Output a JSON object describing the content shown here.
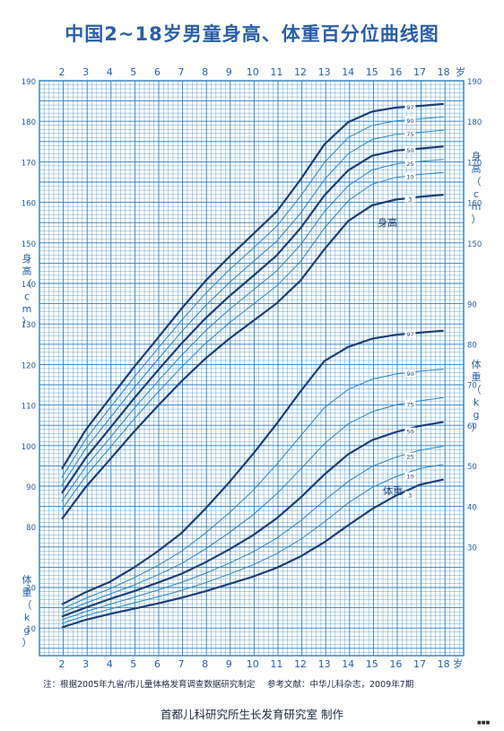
{
  "title": "中国2~18岁男童身高、体重百分位曲线图",
  "footer": {
    "note": "注：根据2005年九省/市儿童体格发育调查数据研究制定",
    "reference": "参考文献：中华儿科杂志，2009年7期",
    "maker": "首都儿科研究所生长发育研究室  制作",
    "corner_mark": "■■■"
  },
  "colors": {
    "grid": "#2b7fc4",
    "curve_major": "#1b3f7a",
    "curve_minor": "#2a86c6",
    "text": "#2a5fa8"
  },
  "chart_data": {
    "type": "line",
    "x_axis": {
      "ticks": [
        "2",
        "3",
        "4",
        "5",
        "6",
        "7",
        "8",
        "9",
        "10",
        "11",
        "12",
        "13",
        "14",
        "15",
        "16",
        "17",
        "18"
      ],
      "unit": "岁",
      "range": [
        2,
        18
      ]
    },
    "height": {
      "label": "身高",
      "axis_label": "身高（cm）",
      "unit": "cm",
      "ticks_left": [
        "80",
        "90",
        "100",
        "110",
        "120",
        "130",
        "140",
        "150",
        "160",
        "170",
        "180",
        "190"
      ],
      "ticks_right": [
        "150",
        "160",
        "170",
        "180",
        "190"
      ],
      "ylim": [
        77,
        190
      ],
      "series": [
        {
          "name": "97",
          "major": true,
          "x": [
            2,
            3,
            4,
            5,
            6,
            7,
            8,
            9,
            10,
            11,
            12,
            13,
            14,
            15,
            16,
            17,
            18
          ],
          "y": [
            94.5,
            104.1,
            111.8,
            119.4,
            126.6,
            133.9,
            140.7,
            146.7,
            152.3,
            157.9,
            165.8,
            174.5,
            180.0,
            182.6,
            183.6,
            184.0,
            184.5
          ]
        },
        {
          "name": "90",
          "major": false,
          "x": [
            2,
            3,
            4,
            5,
            6,
            7,
            8,
            9,
            10,
            11,
            12,
            13,
            14,
            15,
            16,
            17,
            18
          ],
          "y": [
            92.4,
            101.8,
            109.4,
            116.9,
            124.0,
            131.0,
            137.6,
            143.5,
            148.8,
            154.3,
            161.7,
            170.0,
            176.2,
            179.2,
            180.3,
            180.8,
            181.3
          ]
        },
        {
          "name": "75",
          "major": false,
          "x": [
            2,
            3,
            4,
            5,
            6,
            7,
            8,
            9,
            10,
            11,
            12,
            13,
            14,
            15,
            16,
            17,
            18
          ],
          "y": [
            90.4,
            99.5,
            106.9,
            114.3,
            121.3,
            128.2,
            134.6,
            140.3,
            145.5,
            150.6,
            157.5,
            165.8,
            172.2,
            175.7,
            177.0,
            177.5,
            178.0
          ]
        },
        {
          "name": "50",
          "major": true,
          "x": [
            2,
            3,
            4,
            5,
            6,
            7,
            8,
            9,
            10,
            11,
            12,
            13,
            14,
            15,
            16,
            17,
            18
          ],
          "y": [
            88.5,
            97.2,
            104.4,
            111.7,
            118.6,
            125.3,
            131.5,
            137.0,
            142.0,
            147.1,
            153.8,
            161.9,
            168.1,
            171.7,
            173.0,
            173.5,
            174.0
          ]
        },
        {
          "name": "25",
          "major": false,
          "x": [
            2,
            3,
            4,
            5,
            6,
            7,
            8,
            9,
            10,
            11,
            12,
            13,
            14,
            15,
            16,
            17,
            18
          ],
          "y": [
            86.5,
            95.0,
            102.0,
            109.2,
            115.9,
            122.4,
            128.4,
            133.7,
            138.5,
            143.3,
            149.7,
            157.9,
            164.3,
            168.2,
            169.7,
            170.3,
            170.8
          ]
        },
        {
          "name": "10",
          "major": false,
          "x": [
            2,
            3,
            4,
            5,
            6,
            7,
            8,
            9,
            10,
            11,
            12,
            13,
            14,
            15,
            16,
            17,
            18
          ],
          "y": [
            84.5,
            92.7,
            99.6,
            106.6,
            113.2,
            119.5,
            125.3,
            130.4,
            135.0,
            139.6,
            145.6,
            153.8,
            160.6,
            164.7,
            166.4,
            167.1,
            167.6
          ]
        },
        {
          "name": "3",
          "major": true,
          "x": [
            2,
            3,
            4,
            5,
            6,
            7,
            8,
            9,
            10,
            11,
            12,
            13,
            14,
            15,
            16,
            17,
            18
          ],
          "y": [
            82.1,
            90.0,
            96.7,
            103.5,
            109.9,
            116.0,
            121.6,
            126.5,
            130.9,
            135.3,
            140.9,
            148.6,
            155.6,
            159.5,
            160.9,
            161.6,
            162.1
          ]
        }
      ]
    },
    "weight": {
      "label": "体重",
      "axis_label": "体重（kg）",
      "unit": "kg",
      "ticks_left": [
        "10",
        "20"
      ],
      "ticks_right": [
        "30",
        "40",
        "50",
        "60",
        "70",
        "80",
        "90"
      ],
      "ylim": [
        5,
        93
      ],
      "series": [
        {
          "name": "97",
          "major": true,
          "x": [
            2,
            3,
            4,
            5,
            6,
            7,
            8,
            9,
            10,
            11,
            12,
            13,
            14,
            15,
            16,
            17,
            18
          ],
          "y": [
            16.0,
            19.0,
            21.5,
            25.0,
            29.0,
            33.5,
            39.5,
            46.0,
            53.0,
            60.5,
            68.5,
            76.0,
            79.5,
            81.5,
            82.5,
            83.0,
            83.5
          ]
        },
        {
          "name": "90",
          "major": false,
          "x": [
            2,
            3,
            4,
            5,
            6,
            7,
            8,
            9,
            10,
            11,
            12,
            13,
            14,
            15,
            16,
            17,
            18
          ],
          "y": [
            14.8,
            17.5,
            19.8,
            22.5,
            25.5,
            29.0,
            33.5,
            38.5,
            44.0,
            50.5,
            57.5,
            64.5,
            69.0,
            71.5,
            72.8,
            73.5,
            74.0
          ]
        },
        {
          "name": "75",
          "major": false,
          "x": [
            2,
            3,
            4,
            5,
            6,
            7,
            8,
            9,
            10,
            11,
            12,
            13,
            14,
            15,
            16,
            17,
            18
          ],
          "y": [
            13.9,
            16.3,
            18.5,
            20.7,
            23.2,
            26.0,
            29.6,
            33.6,
            38.0,
            43.2,
            49.3,
            55.6,
            60.5,
            63.5,
            65.2,
            66.2,
            67.0
          ]
        },
        {
          "name": "50",
          "major": true,
          "x": [
            2,
            3,
            4,
            5,
            6,
            7,
            8,
            9,
            10,
            11,
            12,
            13,
            14,
            15,
            16,
            17,
            18
          ],
          "y": [
            13.0,
            15.2,
            17.3,
            19.2,
            21.3,
            23.5,
            26.3,
            29.5,
            33.0,
            37.2,
            42.3,
            48.0,
            53.0,
            56.5,
            58.5,
            60.0,
            61.0
          ]
        },
        {
          "name": "25",
          "major": false,
          "x": [
            2,
            3,
            4,
            5,
            6,
            7,
            8,
            9,
            10,
            11,
            12,
            13,
            14,
            15,
            16,
            17,
            18
          ],
          "y": [
            12.2,
            14.2,
            16.0,
            17.7,
            19.5,
            21.4,
            23.6,
            26.1,
            28.9,
            32.3,
            36.6,
            41.6,
            46.3,
            50.0,
            52.3,
            54.0,
            55.0
          ]
        },
        {
          "name": "10",
          "major": false,
          "x": [
            2,
            3,
            4,
            5,
            6,
            7,
            8,
            9,
            10,
            11,
            12,
            13,
            14,
            15,
            16,
            17,
            18
          ],
          "y": [
            11.3,
            13.2,
            14.8,
            16.3,
            17.8,
            19.4,
            21.3,
            23.4,
            25.7,
            28.5,
            32.0,
            36.3,
            41.0,
            44.8,
            47.5,
            49.5,
            50.5
          ]
        },
        {
          "name": "3",
          "major": true,
          "x": [
            2,
            3,
            4,
            5,
            6,
            7,
            8,
            9,
            10,
            11,
            12,
            13,
            14,
            15,
            16,
            17,
            18
          ],
          "y": [
            10.3,
            12.2,
            13.6,
            14.9,
            16.2,
            17.6,
            19.2,
            21.0,
            22.8,
            25.0,
            27.8,
            31.3,
            35.5,
            39.5,
            42.8,
            45.5,
            46.8
          ]
        }
      ]
    },
    "grid": true
  }
}
